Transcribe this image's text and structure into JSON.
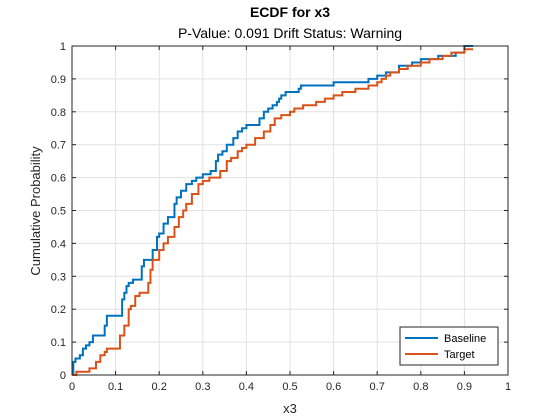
{
  "chart_data": {
    "type": "line",
    "step": true,
    "title": "ECDF for x3",
    "subtitle": "P-Value: 0.091 Drift Status: Warning",
    "xlabel": "x3",
    "ylabel": "Cumulative Probability",
    "xlim": [
      0,
      1
    ],
    "ylim": [
      0,
      1
    ],
    "xticks": [
      0,
      0.1,
      0.2,
      0.3,
      0.4,
      0.5,
      0.6,
      0.7,
      0.8,
      0.9,
      1
    ],
    "xtick_labels": [
      "0",
      "0.1",
      "0.2",
      "0.3",
      "0.4",
      "0.5",
      "0.6",
      "0.7",
      "0.8",
      "0.9",
      "1"
    ],
    "yticks": [
      0,
      0.1,
      0.2,
      0.3,
      0.4,
      0.5,
      0.6,
      0.7,
      0.8,
      0.9,
      1
    ],
    "ytick_labels": [
      "0",
      "0.1",
      "0.2",
      "0.3",
      "0.4",
      "0.5",
      "0.6",
      "0.7",
      "0.8",
      "0.9",
      "1"
    ],
    "grid": true,
    "legend_position": "bottom-right",
    "series": [
      {
        "name": "Baseline",
        "color": "#0072BD",
        "x": [
          0,
          0.003,
          0.008,
          0.018,
          0.025,
          0.032,
          0.04,
          0.048,
          0.055,
          0.075,
          0.08,
          0.095,
          0.115,
          0.12,
          0.125,
          0.13,
          0.14,
          0.16,
          0.165,
          0.17,
          0.185,
          0.195,
          0.2,
          0.21,
          0.22,
          0.235,
          0.24,
          0.25,
          0.262,
          0.275,
          0.285,
          0.3,
          0.318,
          0.33,
          0.335,
          0.345,
          0.355,
          0.37,
          0.38,
          0.39,
          0.4,
          0.415,
          0.43,
          0.44,
          0.45,
          0.46,
          0.47,
          0.475,
          0.48,
          0.49,
          0.5,
          0.52,
          0.525,
          0.55,
          0.6,
          0.65,
          0.68,
          0.7,
          0.72,
          0.75,
          0.78,
          0.8,
          0.84,
          0.88,
          0.9,
          0.92
        ],
        "y": [
          0,
          0.04,
          0.05,
          0.06,
          0.08,
          0.09,
          0.1,
          0.12,
          0.12,
          0.15,
          0.18,
          0.18,
          0.23,
          0.25,
          0.27,
          0.28,
          0.29,
          0.33,
          0.35,
          0.35,
          0.38,
          0.42,
          0.43,
          0.46,
          0.48,
          0.52,
          0.54,
          0.56,
          0.58,
          0.59,
          0.6,
          0.61,
          0.62,
          0.65,
          0.67,
          0.68,
          0.7,
          0.72,
          0.74,
          0.75,
          0.76,
          0.76,
          0.78,
          0.8,
          0.81,
          0.82,
          0.83,
          0.84,
          0.85,
          0.86,
          0.86,
          0.87,
          0.88,
          0.88,
          0.89,
          0.89,
          0.9,
          0.91,
          0.92,
          0.94,
          0.95,
          0.96,
          0.97,
          0.98,
          1.0,
          1.0
        ]
      },
      {
        "name": "Target",
        "color": "#D95319",
        "x": [
          0,
          0.01,
          0.04,
          0.055,
          0.065,
          0.075,
          0.08,
          0.1,
          0.11,
          0.12,
          0.13,
          0.135,
          0.145,
          0.155,
          0.175,
          0.18,
          0.185,
          0.2,
          0.21,
          0.22,
          0.235,
          0.245,
          0.255,
          0.262,
          0.275,
          0.29,
          0.3,
          0.315,
          0.34,
          0.355,
          0.365,
          0.38,
          0.39,
          0.4,
          0.42,
          0.44,
          0.455,
          0.465,
          0.48,
          0.5,
          0.51,
          0.53,
          0.56,
          0.58,
          0.6,
          0.62,
          0.65,
          0.68,
          0.7,
          0.71,
          0.72,
          0.73,
          0.75,
          0.77,
          0.8,
          0.82,
          0.85,
          0.87,
          0.9,
          0.92
        ],
        "y": [
          0,
          0.01,
          0.02,
          0.04,
          0.06,
          0.07,
          0.08,
          0.08,
          0.12,
          0.15,
          0.2,
          0.21,
          0.24,
          0.25,
          0.28,
          0.32,
          0.35,
          0.38,
          0.4,
          0.42,
          0.45,
          0.48,
          0.5,
          0.52,
          0.55,
          0.58,
          0.59,
          0.6,
          0.62,
          0.65,
          0.66,
          0.68,
          0.69,
          0.7,
          0.72,
          0.74,
          0.76,
          0.78,
          0.79,
          0.8,
          0.81,
          0.82,
          0.83,
          0.84,
          0.85,
          0.86,
          0.87,
          0.88,
          0.89,
          0.9,
          0.91,
          0.92,
          0.93,
          0.94,
          0.95,
          0.96,
          0.97,
          0.98,
          0.99,
          0.99
        ]
      }
    ]
  }
}
